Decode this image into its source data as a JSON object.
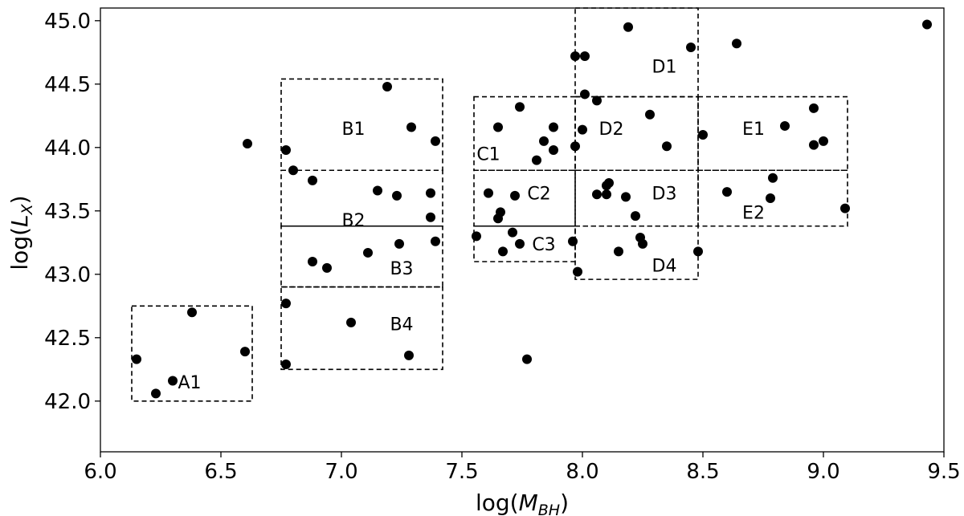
{
  "chart_data": {
    "type": "scatter",
    "xlabel_parts": {
      "pre": "log(",
      "main": "M",
      "sub": "BH",
      "post": ")"
    },
    "ylabel_parts": {
      "pre": "log(",
      "main": "L",
      "sub": "X",
      "post": ")"
    },
    "xlim": [
      6.0,
      9.5
    ],
    "ylim": [
      41.6,
      45.1
    ],
    "xticks": [
      "6.0",
      "6.5",
      "7.0",
      "7.5",
      "8.0",
      "8.5",
      "9.0",
      "9.5"
    ],
    "yticks": [
      "42.0",
      "42.5",
      "43.0",
      "43.5",
      "44.0",
      "44.5",
      "45.0"
    ],
    "grid": false,
    "points": [
      [
        6.15,
        42.33
      ],
      [
        6.23,
        42.06
      ],
      [
        6.3,
        42.16
      ],
      [
        6.38,
        42.7
      ],
      [
        6.6,
        42.39
      ],
      [
        6.61,
        44.03
      ],
      [
        6.77,
        43.98
      ],
      [
        6.8,
        43.82
      ],
      [
        6.88,
        43.74
      ],
      [
        7.19,
        44.48
      ],
      [
        7.29,
        44.16
      ],
      [
        7.39,
        44.05
      ],
      [
        7.15,
        43.66
      ],
      [
        7.23,
        43.62
      ],
      [
        7.37,
        43.64
      ],
      [
        7.37,
        43.45
      ],
      [
        6.88,
        43.1
      ],
      [
        6.94,
        43.05
      ],
      [
        7.11,
        43.17
      ],
      [
        7.24,
        43.24
      ],
      [
        7.39,
        43.26
      ],
      [
        6.77,
        42.77
      ],
      [
        7.04,
        42.62
      ],
      [
        6.77,
        42.29
      ],
      [
        7.28,
        42.36
      ],
      [
        7.65,
        44.16
      ],
      [
        7.74,
        44.32
      ],
      [
        7.84,
        44.05
      ],
      [
        7.88,
        44.16
      ],
      [
        7.88,
        43.98
      ],
      [
        7.81,
        43.9
      ],
      [
        7.61,
        43.64
      ],
      [
        7.66,
        43.49
      ],
      [
        7.65,
        43.44
      ],
      [
        7.72,
        43.62
      ],
      [
        7.56,
        43.3
      ],
      [
        7.71,
        43.33
      ],
      [
        7.74,
        43.24
      ],
      [
        7.67,
        43.18
      ],
      [
        7.97,
        44.72
      ],
      [
        8.01,
        44.72
      ],
      [
        8.19,
        44.95
      ],
      [
        8.45,
        44.79
      ],
      [
        8.01,
        44.42
      ],
      [
        8.06,
        44.37
      ],
      [
        8.0,
        44.14
      ],
      [
        7.97,
        44.01
      ],
      [
        8.28,
        44.26
      ],
      [
        8.35,
        44.01
      ],
      [
        8.06,
        43.63
      ],
      [
        8.1,
        43.7
      ],
      [
        8.11,
        43.72
      ],
      [
        8.1,
        43.63
      ],
      [
        8.18,
        43.61
      ],
      [
        8.22,
        43.46
      ],
      [
        7.96,
        43.26
      ],
      [
        7.98,
        43.02
      ],
      [
        8.15,
        43.18
      ],
      [
        8.24,
        43.29
      ],
      [
        8.25,
        43.24
      ],
      [
        8.48,
        43.18
      ],
      [
        8.5,
        44.1
      ],
      [
        8.64,
        44.82
      ],
      [
        8.84,
        44.17
      ],
      [
        8.96,
        44.31
      ],
      [
        8.96,
        44.02
      ],
      [
        9.0,
        44.05
      ],
      [
        8.6,
        43.65
      ],
      [
        8.78,
        43.6
      ],
      [
        8.79,
        43.76
      ],
      [
        9.09,
        43.52
      ],
      [
        7.77,
        42.33
      ],
      [
        9.43,
        44.97
      ]
    ],
    "regions": [
      {
        "label": "A1",
        "x0": 6.13,
        "x1": 6.63,
        "y0": 42.0,
        "y1": 42.75,
        "lx": 6.37,
        "ly": 42.15
      },
      {
        "label": "B1",
        "x0": 6.75,
        "x1": 7.42,
        "y0": 43.82,
        "y1": 44.54,
        "lx": 7.05,
        "ly": 44.15
      },
      {
        "label": "B2",
        "x0": 6.75,
        "x1": 7.42,
        "y0": 43.38,
        "y1": 43.82,
        "lx": 7.05,
        "ly": 43.43
      },
      {
        "label": "B3",
        "x0": 6.75,
        "x1": 7.42,
        "y0": 42.9,
        "y1": 43.38,
        "lx": 7.25,
        "ly": 43.05
      },
      {
        "label": "B4",
        "x0": 6.75,
        "x1": 7.42,
        "y0": 42.25,
        "y1": 42.9,
        "lx": 7.25,
        "ly": 42.61
      },
      {
        "label": "C1",
        "x0": 7.55,
        "x1": 7.97,
        "y0": 43.82,
        "y1": 44.4,
        "lx": 7.61,
        "ly": 43.95
      },
      {
        "label": "C2",
        "x0": 7.55,
        "x1": 7.97,
        "y0": 43.38,
        "y1": 43.82,
        "lx": 7.82,
        "ly": 43.64
      },
      {
        "label": "C3",
        "x0": 7.55,
        "x1": 7.97,
        "y0": 43.1,
        "y1": 43.38,
        "lx": 7.84,
        "ly": 43.24
      },
      {
        "label": "D1",
        "x0": 7.97,
        "x1": 8.48,
        "y0": 44.4,
        "y1": 45.1,
        "lx": 8.34,
        "ly": 44.64
      },
      {
        "label": "D2",
        "x0": 7.97,
        "x1": 8.48,
        "y0": 43.82,
        "y1": 44.4,
        "lx": 8.12,
        "ly": 44.15
      },
      {
        "label": "D3",
        "x0": 7.97,
        "x1": 8.48,
        "y0": 43.38,
        "y1": 43.82,
        "lx": 8.34,
        "ly": 43.64
      },
      {
        "label": "D4",
        "x0": 7.97,
        "x1": 8.48,
        "y0": 42.96,
        "y1": 43.38,
        "lx": 8.34,
        "ly": 43.07
      },
      {
        "label": "E1",
        "x0": 8.48,
        "x1": 9.1,
        "y0": 43.82,
        "y1": 44.4,
        "lx": 8.71,
        "ly": 44.15
      },
      {
        "label": "E2",
        "x0": 8.48,
        "x1": 9.1,
        "y0": 43.38,
        "y1": 43.82,
        "lx": 8.71,
        "ly": 43.49
      }
    ]
  }
}
